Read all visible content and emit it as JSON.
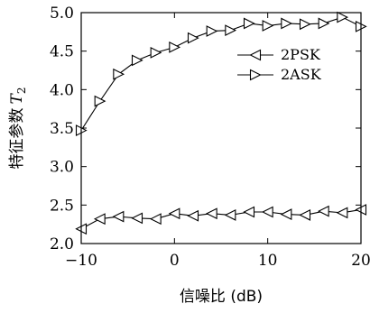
{
  "chart_data": {
    "type": "line",
    "xlabel": "信噪比 (dB)",
    "ylabel": "特征参数",
    "ylabel_symbol": "T",
    "ylabel_subscript": "2",
    "xlim": [
      -10,
      20
    ],
    "ylim": [
      2.0,
      5.0
    ],
    "xticks": [
      -10,
      0,
      10,
      20
    ],
    "xtick_labels": [
      "−10",
      "0",
      "10",
      "20"
    ],
    "yticks": [
      2.0,
      2.5,
      3.0,
      3.5,
      4.0,
      4.5,
      5.0
    ],
    "ytick_labels": [
      "2.0",
      "2.5",
      "3.0",
      "3.5",
      "4.0",
      "4.5",
      "5.0"
    ],
    "grid": false,
    "legend_position": "top-right",
    "x": [
      -10,
      -8,
      -6,
      -4,
      -2,
      0,
      2,
      4,
      6,
      8,
      10,
      12,
      14,
      16,
      18,
      20
    ],
    "series": [
      {
        "name": "2PSK",
        "marker": "triangle-left",
        "values": [
          2.19,
          2.32,
          2.35,
          2.33,
          2.32,
          2.39,
          2.36,
          2.39,
          2.37,
          2.41,
          2.41,
          2.38,
          2.37,
          2.42,
          2.4,
          2.44
        ]
      },
      {
        "name": "2ASK",
        "marker": "triangle-right",
        "values": [
          3.47,
          3.85,
          4.2,
          4.38,
          4.48,
          4.55,
          4.67,
          4.76,
          4.77,
          4.86,
          4.83,
          4.86,
          4.85,
          4.86,
          4.94,
          4.82
        ]
      }
    ]
  }
}
